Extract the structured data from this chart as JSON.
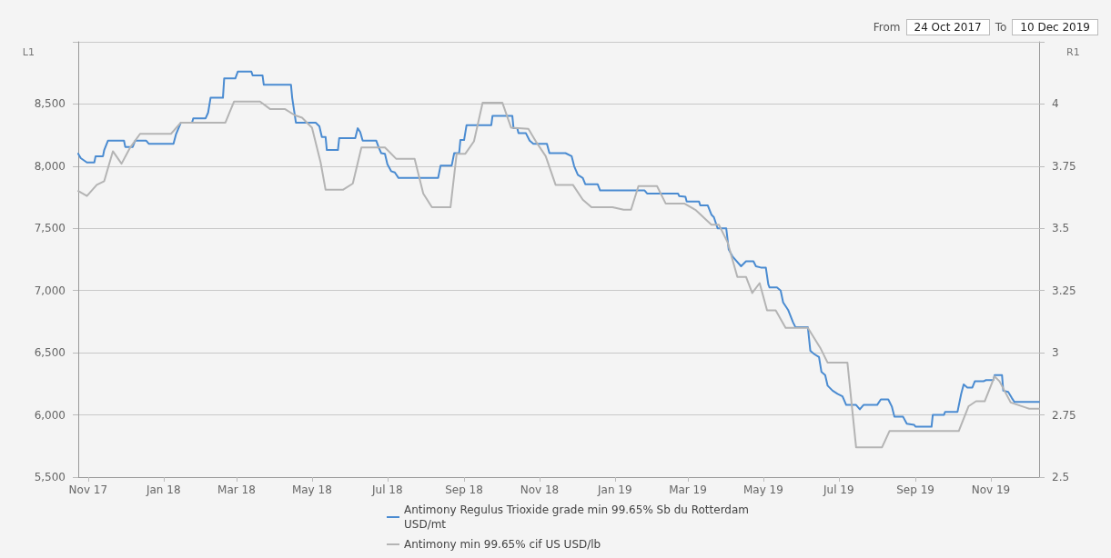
{
  "chart_data": {
    "type": "line",
    "ylabel": "L1",
    "y2label": "R1",
    "annotations": [
      "From",
      "24 Oct 2017",
      "To",
      "10 Dec 2019"
    ],
    "xlim": [
      "2017-10-24",
      "2019-12-10"
    ],
    "xticks": [
      {
        "value": "2017-11-01",
        "label": "Nov 17"
      },
      {
        "value": "2018-01-01",
        "label": "Jan 18"
      },
      {
        "value": "2018-03-01",
        "label": "Mar 18"
      },
      {
        "value": "2018-05-01",
        "label": "May 18"
      },
      {
        "value": "2018-07-01",
        "label": "Jul 18"
      },
      {
        "value": "2018-09-01",
        "label": "Sep 18"
      },
      {
        "value": "2018-11-01",
        "label": "Nov 18"
      },
      {
        "value": "2019-01-01",
        "label": "Jan 19"
      },
      {
        "value": "2019-03-01",
        "label": "Mar 19"
      },
      {
        "value": "2019-05-01",
        "label": "May 19"
      },
      {
        "value": "2019-07-01",
        "label": "Jul 19"
      },
      {
        "value": "2019-09-01",
        "label": "Sep 19"
      },
      {
        "value": "2019-11-01",
        "label": "Nov 19"
      }
    ],
    "ylim": [
      5500,
      9000
    ],
    "yticks": [
      {
        "value": 5500,
        "label": "5,500"
      },
      {
        "value": 6000,
        "label": "6,000"
      },
      {
        "value": 6500,
        "label": "6,500"
      },
      {
        "value": 7000,
        "label": "7,000"
      },
      {
        "value": 7500,
        "label": "7,500"
      },
      {
        "value": 8000,
        "label": "8,000"
      },
      {
        "value": 8500,
        "label": "8,500"
      },
      {
        "value": 9000,
        "label": null
      }
    ],
    "y2lim": [
      2.5,
      4.25
    ],
    "y2ticks": [
      2.5,
      2.75,
      3,
      3.25,
      3.5,
      3.75,
      4,
      {
        "value": 4.25,
        "label": null
      }
    ],
    "grid": "y",
    "legend": "bottom",
    "marker": "none",
    "line_style": "solid",
    "series": [
      {
        "name": "Antimony Regulus Trioxide grade min 99.65% Sb du Rotterdam USD/mt",
        "color": "#4a8bd1",
        "axis": "y",
        "x": [
          "2017-10-24",
          "2017-10-26",
          "2017-10-31",
          "2017-11-06",
          "2017-11-07",
          "2017-11-13",
          "2017-11-14",
          "2017-11-17",
          "2017-11-30",
          "2017-12-01",
          "2017-12-07",
          "2017-12-09",
          "2017-12-18",
          "2017-12-20",
          "2018-01-09",
          "2018-01-11",
          "2018-01-15",
          "2018-01-24",
          "2018-01-25",
          "2018-02-04",
          "2018-02-06",
          "2018-02-08",
          "2018-02-18",
          "2018-02-19",
          "2018-02-28",
          "2018-03-02",
          "2018-03-13",
          "2018-03-14",
          "2018-03-22",
          "2018-03-23",
          "2018-04-14",
          "2018-04-15",
          "2018-04-18",
          "2018-05-04",
          "2018-05-07",
          "2018-05-09",
          "2018-05-12",
          "2018-05-13",
          "2018-05-22",
          "2018-05-23",
          "2018-06-05",
          "2018-06-07",
          "2018-06-09",
          "2018-06-11",
          "2018-06-22",
          "2018-06-24",
          "2018-06-26",
          "2018-06-29",
          "2018-07-01",
          "2018-07-04",
          "2018-07-07",
          "2018-07-10",
          "2018-08-11",
          "2018-08-13",
          "2018-08-22",
          "2018-08-24",
          "2018-08-28",
          "2018-08-29",
          "2018-09-01",
          "2018-09-03",
          "2018-09-23",
          "2018-09-24",
          "2018-10-10",
          "2018-10-11",
          "2018-10-14",
          "2018-10-15",
          "2018-10-21",
          "2018-10-24",
          "2018-10-27",
          "2018-11-07",
          "2018-11-09",
          "2018-11-22",
          "2018-11-27",
          "2018-11-29",
          "2018-12-02",
          "2018-12-06",
          "2018-12-08",
          "2018-12-18",
          "2018-12-20",
          "2019-01-25",
          "2019-01-27",
          "2019-02-21",
          "2019-02-22",
          "2019-02-27",
          "2019-02-28",
          "2019-03-10",
          "2019-03-11",
          "2019-03-17",
          "2019-03-20",
          "2019-03-22",
          "2019-03-25",
          "2019-04-01",
          "2019-04-03",
          "2019-04-06",
          "2019-04-13",
          "2019-04-17",
          "2019-04-23",
          "2019-04-25",
          "2019-04-29",
          "2019-05-03",
          "2019-05-05",
          "2019-05-06",
          "2019-05-12",
          "2019-05-15",
          "2019-05-17",
          "2019-05-21",
          "2019-05-25",
          "2019-05-27",
          "2019-06-06",
          "2019-06-08",
          "2019-06-11",
          "2019-06-15",
          "2019-06-17",
          "2019-06-20",
          "2019-06-22",
          "2019-06-26",
          "2019-06-30",
          "2019-07-04",
          "2019-07-07",
          "2019-07-15",
          "2019-07-18",
          "2019-07-21",
          "2019-08-01",
          "2019-08-04",
          "2019-08-10",
          "2019-08-13",
          "2019-08-15",
          "2019-08-22",
          "2019-08-25",
          "2019-08-31",
          "2019-09-01",
          "2019-09-14",
          "2019-09-15",
          "2019-09-24",
          "2019-09-25",
          "2019-10-05",
          "2019-10-08",
          "2019-10-10",
          "2019-10-13",
          "2019-10-17",
          "2019-10-19",
          "2019-10-26",
          "2019-10-28",
          "2019-11-03",
          "2019-11-04",
          "2019-11-10",
          "2019-11-11",
          "2019-11-15",
          "2019-11-18",
          "2019-11-20",
          "2019-12-10"
        ],
        "values": [
          8100,
          8065,
          8030,
          8030,
          8080,
          8080,
          8130,
          8205,
          8205,
          8155,
          8155,
          8205,
          8205,
          8180,
          8180,
          8255,
          8350,
          8350,
          8385,
          8385,
          8430,
          8550,
          8550,
          8705,
          8705,
          8760,
          8760,
          8730,
          8730,
          8655,
          8655,
          8550,
          8350,
          8350,
          8320,
          8235,
          8235,
          8130,
          8130,
          8225,
          8225,
          8305,
          8275,
          8205,
          8205,
          8150,
          8105,
          8100,
          8015,
          7960,
          7950,
          7905,
          7905,
          8005,
          8005,
          8105,
          8105,
          8210,
          8210,
          8330,
          8330,
          8405,
          8405,
          8305,
          8305,
          8265,
          8265,
          8205,
          8180,
          8180,
          8105,
          8105,
          8080,
          8000,
          7930,
          7905,
          7855,
          7855,
          7805,
          7805,
          7780,
          7780,
          7760,
          7755,
          7715,
          7715,
          7685,
          7685,
          7610,
          7590,
          7500,
          7500,
          7330,
          7275,
          7195,
          7235,
          7235,
          7195,
          7185,
          7185,
          7050,
          7025,
          7025,
          7000,
          6905,
          6845,
          6745,
          6705,
          6705,
          6515,
          6490,
          6465,
          6345,
          6320,
          6235,
          6195,
          6170,
          6150,
          6080,
          6080,
          6045,
          6080,
          6080,
          6125,
          6125,
          6065,
          5985,
          5985,
          5930,
          5920,
          5905,
          5905,
          6000,
          6000,
          6025,
          6025,
          6170,
          6245,
          6220,
          6220,
          6270,
          6270,
          6280,
          6280,
          6320,
          6320,
          6195,
          6185,
          6135,
          6105,
          6105
        ]
      },
      {
        "name": "Antimony min 99.65% cif US USD/lb",
        "color": "#b4b4b4",
        "axis": "y2",
        "x": [
          "2017-10-24",
          "2017-10-31",
          "2017-11-08",
          "2017-11-14",
          "2017-11-21",
          "2017-11-28",
          "2017-12-05",
          "2017-12-13",
          "2018-01-07",
          "2018-01-15",
          "2018-02-20",
          "2018-02-27",
          "2018-03-20",
          "2018-03-28",
          "2018-04-09",
          "2018-04-17",
          "2018-04-23",
          "2018-05-01",
          "2018-05-08",
          "2018-05-12",
          "2018-05-26",
          "2018-06-03",
          "2018-06-10",
          "2018-06-29",
          "2018-07-08",
          "2018-07-23",
          "2018-07-30",
          "2018-08-06",
          "2018-08-21",
          "2018-08-26",
          "2018-09-02",
          "2018-09-09",
          "2018-09-16",
          "2018-10-02",
          "2018-10-09",
          "2018-10-23",
          "2018-10-29",
          "2018-11-06",
          "2018-11-14",
          "2018-11-28",
          "2018-12-06",
          "2018-12-13",
          "2018-12-30",
          "2019-01-08",
          "2019-01-14",
          "2019-01-20",
          "2019-02-04",
          "2019-02-11",
          "2019-02-26",
          "2019-03-07",
          "2019-03-20",
          "2019-03-26",
          "2019-04-02",
          "2019-04-10",
          "2019-04-17",
          "2019-04-22",
          "2019-04-28",
          "2019-05-04",
          "2019-05-11",
          "2019-05-19",
          "2019-06-06",
          "2019-06-16",
          "2019-06-22",
          "2019-07-08",
          "2019-07-15",
          "2019-08-05",
          "2019-08-11",
          "2019-10-06",
          "2019-10-14",
          "2019-10-20",
          "2019-10-27",
          "2019-11-04",
          "2019-11-08",
          "2019-11-17",
          "2019-11-29",
          "2019-12-02",
          "2019-12-10"
        ],
        "values": [
          3.65,
          3.63,
          3.675,
          3.69,
          3.81,
          3.76,
          3.825,
          3.88,
          3.88,
          3.925,
          3.925,
          4.01,
          4.01,
          3.98,
          3.98,
          3.955,
          3.945,
          3.905,
          3.765,
          3.655,
          3.655,
          3.68,
          3.825,
          3.825,
          3.78,
          3.78,
          3.64,
          3.585,
          3.585,
          3.8,
          3.8,
          3.85,
          4.005,
          4.005,
          3.905,
          3.9,
          3.85,
          3.79,
          3.675,
          3.675,
          3.615,
          3.585,
          3.585,
          3.575,
          3.575,
          3.67,
          3.67,
          3.6,
          3.6,
          3.575,
          3.515,
          3.515,
          3.445,
          3.305,
          3.305,
          3.24,
          3.28,
          3.17,
          3.17,
          3.1,
          3.1,
          3.02,
          2.96,
          2.96,
          2.62,
          2.62,
          2.685,
          2.685,
          2.785,
          2.805,
          2.805,
          2.905,
          2.885,
          2.8,
          2.78,
          2.775,
          2.775
        ]
      }
    ]
  }
}
